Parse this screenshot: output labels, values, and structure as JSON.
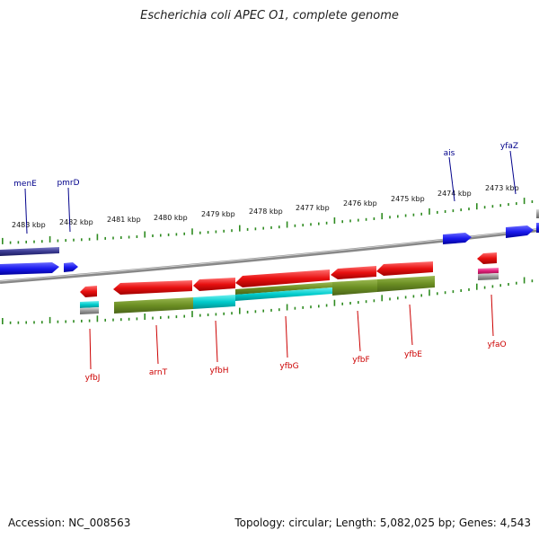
{
  "title": "Escherichia coli APEC O1, complete genome",
  "footer": {
    "accession": "Accession: NC_008563",
    "summary": "Topology: circular; Length: 5,082,025 bp; Genes: 4,543"
  },
  "scale": {
    "ticks": [
      "2483 kbp",
      "2482 kbp",
      "2481 kbp",
      "2480 kbp",
      "2479 kbp",
      "2478 kbp",
      "2477 kbp",
      "2476 kbp",
      "2475 kbp",
      "2474 kbp",
      "2473 kbp"
    ]
  },
  "gene_labels": {
    "forward": [
      "menE",
      "pmrD",
      "ais",
      "yfaZ"
    ],
    "reverse": [
      "yfbJ",
      "arnT",
      "yfbH",
      "yfbG",
      "yfbF",
      "yfbE",
      "yfaO"
    ]
  },
  "colors": {
    "forward_gene": "#1a1aee",
    "reverse_gene": "#e81010",
    "label_forward": "#00008b",
    "label_reverse": "#cc0000",
    "cog_olive": "#6b8e23",
    "cog_cyan": "#00cccc",
    "tick_green": "#2e8b20",
    "backbone": "#888888"
  }
}
